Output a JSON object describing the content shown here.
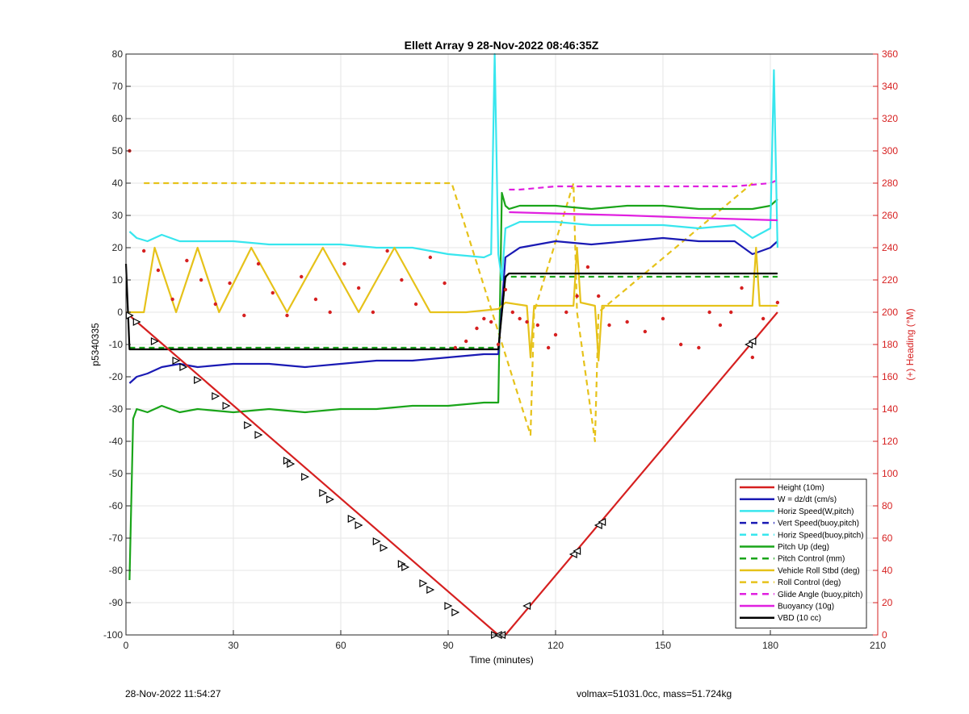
{
  "footer": {
    "timestamp": "28-Nov-2022 11:54:27",
    "volmax_mass": "volmax=51031.0cc, mass=51.724kg"
  },
  "colors": {
    "height": "#d62020",
    "w": "#1a1ab4",
    "horiz": "#38e6ee",
    "pitch": "#1aa51a",
    "roll": "#e6c21a",
    "glide": "#e020e0",
    "vbd": "#000000",
    "heading": "#d62020"
  },
  "chart_data": {
    "type": "line",
    "title": "Ellett Array 9 28-Nov-2022 08:46:35Z",
    "xlabel": "Time (minutes)",
    "ylabel": "p5340335",
    "y2label": "(+) Heading (°M)",
    "xlim": [
      0,
      210
    ],
    "ylim": [
      -100,
      80
    ],
    "y2lim": [
      0,
      360
    ],
    "xticks": [
      "0",
      "30",
      "60",
      "90",
      "120",
      "150",
      "180",
      "210"
    ],
    "yticks": [
      "-100",
      "-90",
      "-80",
      "-70",
      "-60",
      "-50",
      "-40",
      "-30",
      "-20",
      "-10",
      "0",
      "10",
      "20",
      "30",
      "40",
      "50",
      "60",
      "70",
      "80"
    ],
    "y2ticks": [
      "0",
      "20",
      "40",
      "60",
      "80",
      "100",
      "120",
      "140",
      "160",
      "180",
      "200",
      "220",
      "240",
      "260",
      "280",
      "300",
      "320",
      "340",
      "360"
    ],
    "grid": true,
    "legend_position": "bottom-right",
    "legend": [
      {
        "label": "Height (10m)",
        "color": "#d62020",
        "dash": false
      },
      {
        "label": "W = dz/dt (cm/s)",
        "color": "#1a1ab4",
        "dash": false
      },
      {
        "label": "Horiz Speed(W,pitch)",
        "color": "#38e6ee",
        "dash": false
      },
      {
        "label": "Vert Speed(buoy,pitch)",
        "color": "#1a1ab4",
        "dash": true
      },
      {
        "label": "Horiz Speed(buoy,pitch)",
        "color": "#38e6ee",
        "dash": true
      },
      {
        "label": "Pitch Up (deg)",
        "color": "#1aa51a",
        "dash": false
      },
      {
        "label": "Pitch Control (mm)",
        "color": "#1aa51a",
        "dash": true
      },
      {
        "label": "Vehicle Roll Stbd (deg)",
        "color": "#e6c21a",
        "dash": false
      },
      {
        "label": "Roll Control (deg)",
        "color": "#e6c21a",
        "dash": true
      },
      {
        "label": "Glide Angle (buoy,pitch)",
        "color": "#e020e0",
        "dash": true
      },
      {
        "label": "Buoyancy (10g)",
        "color": "#e020e0",
        "dash": false
      },
      {
        "label": "VBD (10 cc)",
        "color": "#000000",
        "dash": false
      }
    ],
    "series": [
      {
        "name": "Height (10m)",
        "x": [
          0,
          2,
          104,
          106,
          182
        ],
        "y": [
          0,
          -2,
          -100,
          -100,
          0
        ]
      },
      {
        "name": "W = dz/dt (cm/s)",
        "x": [
          1,
          3,
          6,
          10,
          15,
          20,
          30,
          40,
          50,
          60,
          70,
          80,
          90,
          100,
          104,
          106,
          110,
          120,
          130,
          140,
          150,
          160,
          170,
          175,
          180,
          182
        ],
        "y": [
          -22,
          -20,
          -19,
          -17,
          -16,
          -17,
          -16,
          -16,
          -17,
          -16,
          -15,
          -15,
          -14,
          -13,
          -13,
          17,
          20,
          22,
          21,
          22,
          23,
          22,
          22,
          18,
          20,
          22
        ]
      },
      {
        "name": "Horiz Speed(W,pitch)",
        "x": [
          1,
          3,
          6,
          10,
          15,
          20,
          30,
          40,
          50,
          60,
          70,
          80,
          90,
          100,
          102,
          103,
          104,
          105,
          106,
          110,
          120,
          130,
          140,
          150,
          160,
          170,
          175,
          180,
          181,
          182
        ],
        "y": [
          25,
          23,
          22,
          24,
          22,
          22,
          22,
          21,
          21,
          21,
          20,
          20,
          18,
          17,
          18,
          80,
          18,
          10,
          26,
          28,
          28,
          27,
          27,
          27,
          26,
          27,
          23,
          26,
          75,
          20
        ]
      },
      {
        "name": "Pitch Up (deg)",
        "x": [
          1,
          2,
          3,
          6,
          10,
          15,
          20,
          30,
          40,
          50,
          60,
          70,
          80,
          90,
          100,
          104,
          105,
          106,
          107,
          110,
          120,
          130,
          140,
          150,
          160,
          170,
          175,
          180,
          182
        ],
        "y": [
          -83,
          -33,
          -30,
          -31,
          -29,
          -31,
          -30,
          -31,
          -30,
          -31,
          -30,
          -30,
          -29,
          -29,
          -28,
          -28,
          37,
          33,
          32,
          33,
          33,
          32,
          33,
          33,
          32,
          32,
          32,
          33,
          35
        ]
      },
      {
        "name": "Pitch Control (mm)",
        "x": [
          1,
          104,
          106,
          182
        ],
        "y": [
          -11,
          -11,
          11,
          11
        ]
      },
      {
        "name": "Vehicle Roll Stbd (deg)",
        "x": [
          0,
          5,
          8,
          14,
          20,
          26,
          35,
          45,
          55,
          65,
          75,
          85,
          95,
          104,
          106,
          112,
          113,
          114,
          125,
          126,
          127,
          131,
          132,
          133,
          175,
          176,
          177,
          182
        ],
        "y": [
          0,
          0,
          20,
          0,
          20,
          0,
          20,
          0,
          20,
          0,
          20,
          0,
          0,
          1,
          3,
          2,
          -14,
          2,
          2,
          20,
          3,
          2,
          -15,
          2,
          2,
          20,
          2,
          2
        ]
      },
      {
        "name": "Roll Control (deg)",
        "x": [
          5,
          9,
          13,
          17,
          21,
          25,
          33,
          37,
          41,
          45,
          49,
          53,
          57,
          61,
          65,
          69,
          73,
          77,
          81,
          85,
          89,
          91,
          113,
          114,
          125,
          126,
          131,
          132,
          175
        ],
        "y": [
          40,
          40,
          40,
          40,
          40,
          40,
          40,
          40,
          40,
          40,
          40,
          40,
          40,
          40,
          40,
          40,
          40,
          40,
          40,
          40,
          40,
          40,
          -38,
          0,
          40,
          0,
          -40,
          0,
          40
        ]
      },
      {
        "name": "Glide Angle (buoy,pitch)",
        "x": [
          107,
          110,
          120,
          130,
          140,
          150,
          160,
          170,
          180,
          182
        ],
        "y": [
          38,
          38,
          39,
          39,
          39,
          39,
          39,
          39,
          40,
          41
        ]
      },
      {
        "name": "Buoyancy (10g)",
        "x": [
          107,
          120,
          140,
          160,
          182
        ],
        "y": [
          31,
          30.6,
          30,
          29.2,
          28.5
        ]
      },
      {
        "name": "VBD (10 cc)",
        "x": [
          0,
          1,
          2,
          104,
          106,
          107,
          182
        ],
        "y": [
          15,
          -11.5,
          -11.5,
          -11.5,
          11,
          12,
          12
        ]
      },
      {
        "name": "Heading (°M)",
        "axis": "right",
        "x": [
          1,
          5,
          9,
          13,
          17,
          21,
          25,
          29,
          33,
          37,
          41,
          45,
          49,
          53,
          57,
          61,
          65,
          69,
          73,
          77,
          81,
          85,
          89,
          92,
          95,
          98,
          100,
          102,
          104,
          106,
          108,
          110,
          112,
          115,
          118,
          120,
          123,
          126,
          129,
          132,
          135,
          140,
          145,
          150,
          155,
          160,
          163,
          166,
          169,
          172,
          175,
          178,
          182
        ],
        "y": [
          300,
          238,
          226,
          208,
          232,
          220,
          205,
          218,
          198,
          230,
          212,
          198,
          222,
          208,
          200,
          230,
          215,
          200,
          238,
          220,
          205,
          234,
          218,
          178,
          182,
          190,
          196,
          194,
          180,
          214,
          200,
          196,
          194,
          192,
          178,
          186,
          200,
          210,
          228,
          210,
          192,
          194,
          188,
          196,
          180,
          178,
          200,
          192,
          200,
          215,
          172,
          196,
          206
        ]
      }
    ],
    "markers": {
      "name": "Height (10m) direction markers",
      "x": [
        1,
        3,
        8,
        14,
        16,
        20,
        25,
        28,
        34,
        37,
        45,
        46,
        50,
        55,
        57,
        63,
        65,
        70,
        72,
        77,
        78,
        83,
        85,
        90,
        92,
        103,
        104,
        105,
        112,
        125,
        126,
        132,
        133,
        174,
        175
      ],
      "y": [
        -1,
        -3,
        -9,
        -15,
        -17,
        -21,
        -26,
        -29,
        -35,
        -38,
        -46,
        -47,
        -51,
        -56,
        -58,
        -64,
        -66,
        -71,
        -73,
        -78,
        -79,
        -84,
        -86,
        -91,
        -93,
        -100,
        -100,
        -100,
        -91,
        -75,
        -74,
        -66,
        -65,
        -10,
        -9
      ]
    }
  }
}
